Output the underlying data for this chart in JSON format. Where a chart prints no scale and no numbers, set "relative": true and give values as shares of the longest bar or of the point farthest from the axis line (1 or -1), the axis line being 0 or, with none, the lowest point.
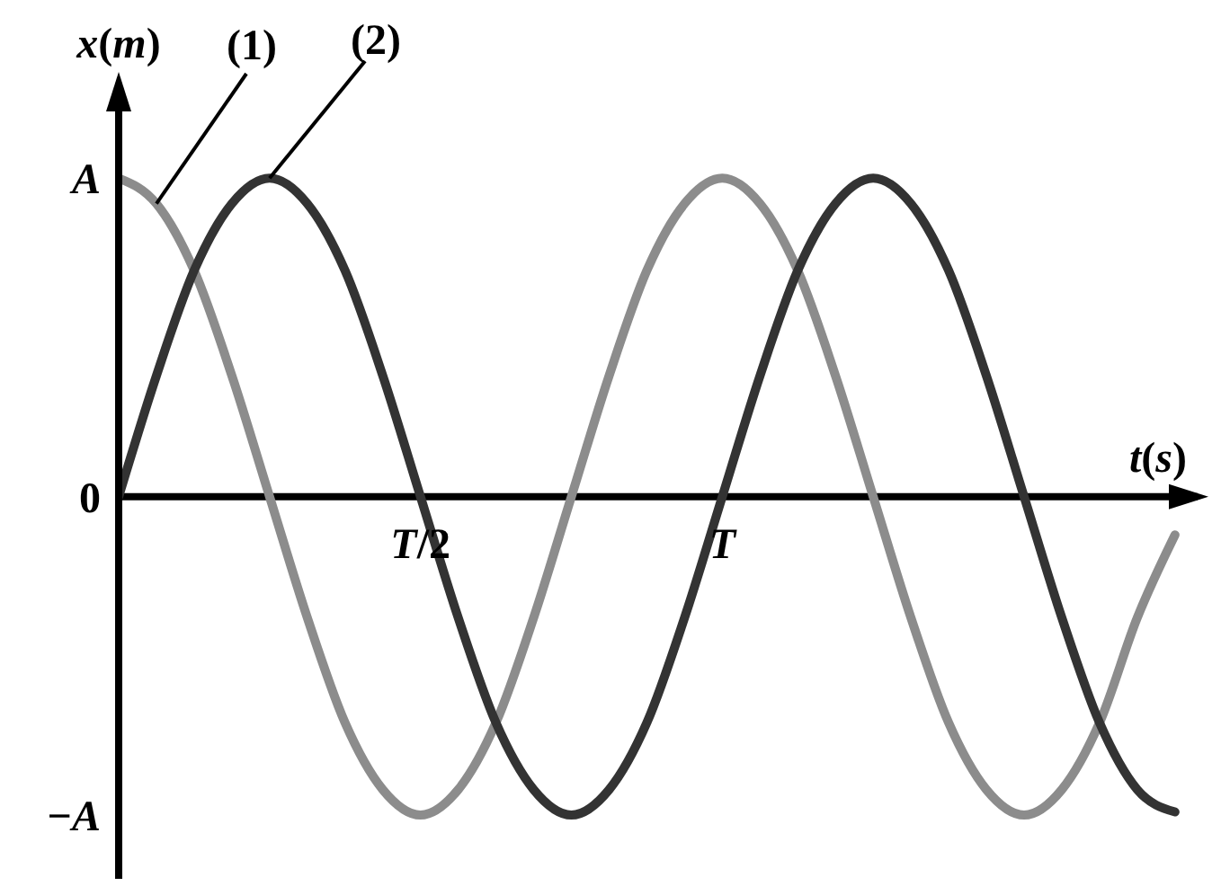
{
  "chart_data": {
    "type": "line",
    "xlabel": "t(s)",
    "ylabel": "x(m)",
    "relative": true,
    "categories": [
      null,
      null,
      null,
      null,
      null,
      null,
      null,
      null,
      "T/2",
      null,
      null,
      null,
      null,
      null,
      null,
      null,
      "T",
      null,
      null,
      null,
      null,
      null,
      null,
      null,
      null,
      null,
      null,
      null,
      null
    ],
    "series": [
      {
        "name": "(1)",
        "color": "#8c8c8c",
        "values": [
          1,
          0.92,
          0.71,
          0.38,
          0,
          -0.38,
          -0.71,
          -0.92,
          -1,
          -0.92,
          -0.71,
          -0.38,
          0,
          0.38,
          0.71,
          0.92,
          1,
          0.92,
          0.71,
          0.38,
          0,
          -0.38,
          -0.71,
          -0.92,
          -1,
          -0.92,
          -0.71,
          -0.38,
          -0.12
        ]
      },
      {
        "name": "(2)",
        "color": "#333333",
        "values": [
          0,
          0.38,
          0.71,
          0.92,
          1,
          0.92,
          0.71,
          0.38,
          0,
          -0.38,
          -0.71,
          -0.92,
          -1,
          -0.92,
          -0.71,
          -0.38,
          0,
          0.38,
          0.71,
          0.92,
          1,
          0.92,
          0.71,
          0.38,
          0,
          -0.38,
          -0.71,
          -0.92,
          -0.99
        ]
      }
    ],
    "annotations": [
      "A",
      "0",
      "−A"
    ],
    "marker": "none",
    "line_style": "solid"
  }
}
